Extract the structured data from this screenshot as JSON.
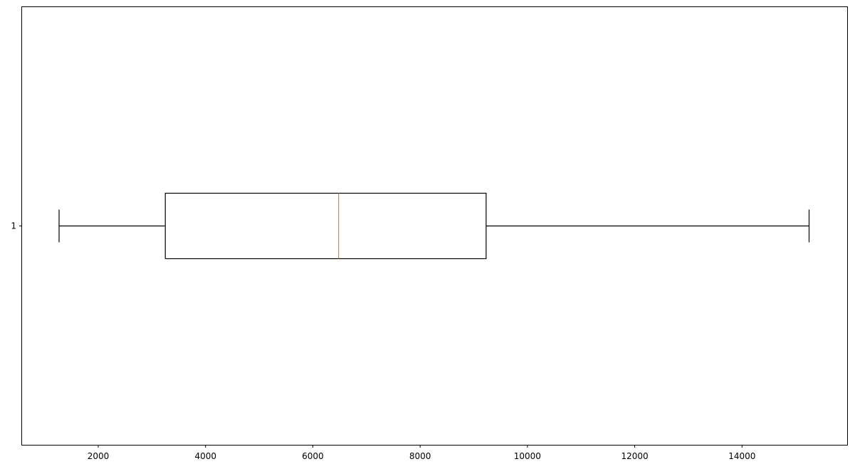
{
  "chart_data": {
    "type": "boxplot",
    "orientation": "horizontal",
    "title": "",
    "xlabel": "",
    "ylabel": "",
    "xlim": [
      580,
      15960
    ],
    "x_ticks": [
      2000,
      4000,
      6000,
      8000,
      10000,
      12000,
      14000
    ],
    "x_tick_labels": [
      "2000",
      "4000",
      "6000",
      "8000",
      "10000",
      "12000",
      "14000"
    ],
    "y_ticks": [
      1
    ],
    "y_tick_labels": [
      "1"
    ],
    "grid": false,
    "legend": "none",
    "boxes": [
      {
        "position": 1,
        "whisker_low": 1270,
        "q1": 3250,
        "median": 6480,
        "q3": 9230,
        "whisker_high": 15250
      }
    ],
    "colors": {
      "box": "#000000",
      "median": "#ff7f0e",
      "axes": "#000000"
    }
  }
}
